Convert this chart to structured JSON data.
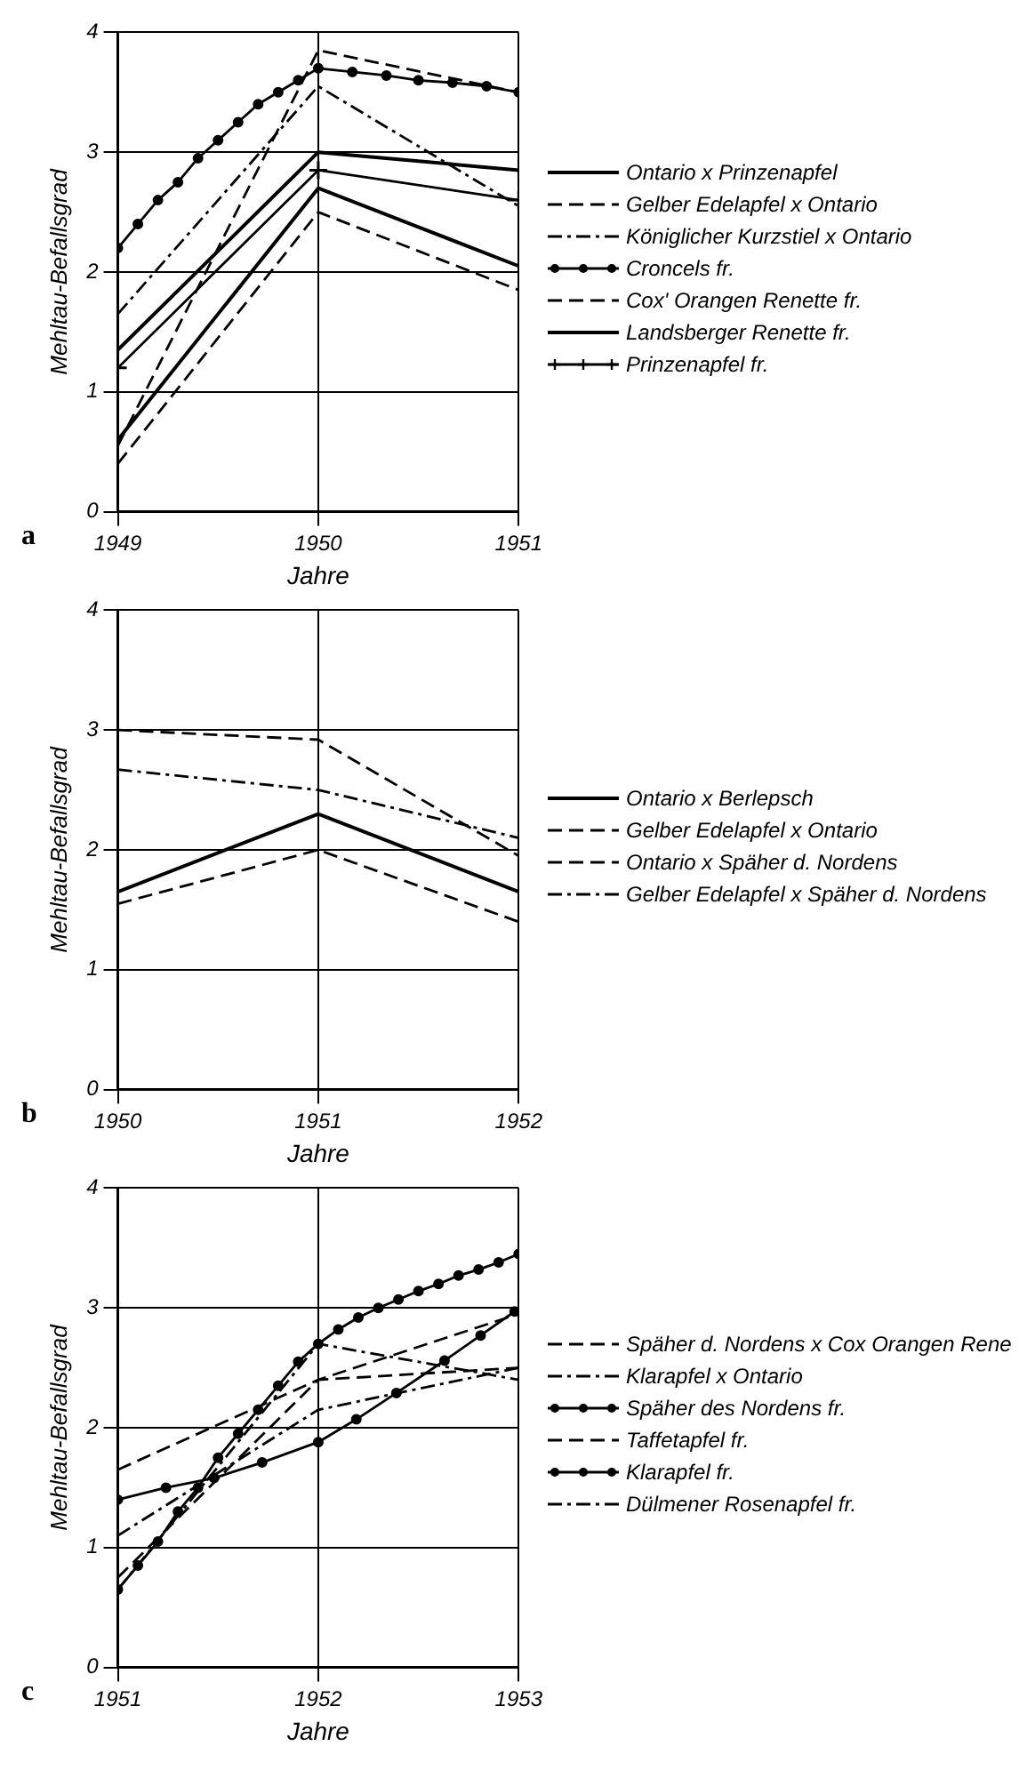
{
  "chart_data": [
    {
      "type": "line",
      "annotations": [
        "a"
      ],
      "xlabel": "Jahre",
      "ylabel": "Mehltau-Befallsgrad",
      "x": [
        1949,
        1950,
        1951
      ],
      "xlim": [
        1949,
        1951
      ],
      "xticks": [
        1949,
        1950,
        1951
      ],
      "ylim": [
        0,
        4
      ],
      "yticks": [
        0,
        1,
        2,
        3,
        4
      ],
      "grid": true,
      "legend": "right",
      "series": [
        {
          "name": "Ontario x Prinzenapfel",
          "color": "#000000",
          "line_style": "solid",
          "values": [
            0.6,
            2.7,
            2.05
          ]
        },
        {
          "name": "Gelber Edelapfel x Ontario",
          "color": "#000000",
          "line_style": "dashed",
          "values": [
            0.4,
            2.5,
            1.85
          ]
        },
        {
          "name": "Königlicher Kurzstiel x Ontario",
          "color": "#000000",
          "line_style": "dotted",
          "values": [
            1.65,
            3.55,
            2.55
          ]
        },
        {
          "name": "Croncels fr.",
          "color": "#000000",
          "line_style": "solid",
          "marker": "circle",
          "x": [
            1949,
            1949.1,
            1949.2,
            1949.3,
            1949.4,
            1949.5,
            1949.6,
            1949.7,
            1949.8,
            1949.9,
            1950,
            1950.17,
            1950.34,
            1950.5,
            1950.67,
            1950.84,
            1951
          ],
          "values": [
            2.2,
            2.4,
            2.6,
            2.75,
            2.95,
            3.1,
            3.25,
            3.4,
            3.5,
            3.6,
            3.7,
            3.67,
            3.64,
            3.6,
            3.58,
            3.55,
            3.5
          ]
        },
        {
          "name": "Cox' Orangen Renette fr.",
          "color": "#000000",
          "line_style": "dashed",
          "values": [
            0.55,
            3.85,
            3.5
          ]
        },
        {
          "name": "Landsberger Renette fr.",
          "color": "#000000",
          "line_style": "solid",
          "values": [
            1.35,
            3.0,
            2.85
          ]
        },
        {
          "name": "Prinzenapfel fr.",
          "color": "#000000",
          "line_style": "solid",
          "marker": "cross",
          "values": [
            1.2,
            2.85,
            2.6
          ]
        }
      ]
    },
    {
      "type": "line",
      "annotations": [
        "b"
      ],
      "xlabel": "Jahre",
      "ylabel": "Mehltau-Befallsgrad",
      "x": [
        1950,
        1951,
        1952
      ],
      "xlim": [
        1950,
        1952
      ],
      "xticks": [
        1950,
        1951,
        1952
      ],
      "ylim": [
        0,
        4
      ],
      "yticks": [
        0,
        1,
        2,
        3,
        4
      ],
      "grid": true,
      "legend": "right",
      "series": [
        {
          "name": "Ontario x Berlepsch",
          "color": "#000000",
          "line_style": "solid",
          "values": [
            1.65,
            2.3,
            1.65
          ]
        },
        {
          "name": "Gelber Edelapfel x Ontario",
          "color": "#000000",
          "line_style": "dashed",
          "values": [
            1.55,
            2.0,
            1.4
          ]
        },
        {
          "name": "Ontario x Späher d. Nordens",
          "color": "#000000",
          "line_style": "dashed",
          "values": [
            3.0,
            2.92,
            1.95
          ]
        },
        {
          "name": "Gelber Edelapfel x Späher d. Nordens",
          "color": "#000000",
          "line_style": "dotted",
          "values": [
            2.67,
            2.5,
            2.1
          ]
        }
      ]
    },
    {
      "type": "line",
      "annotations": [
        "c"
      ],
      "xlabel": "Jahre",
      "ylabel": "Mehltau-Befallsgrad",
      "x": [
        1951,
        1952,
        1953
      ],
      "xlim": [
        1951,
        1953
      ],
      "xticks": [
        1951,
        1952,
        1953
      ],
      "ylim": [
        0,
        4
      ],
      "yticks": [
        0,
        1,
        2,
        3,
        4
      ],
      "grid": true,
      "legend": "right",
      "series": [
        {
          "name": "Späher d. Nordens x Cox Orangen Rene",
          "color": "#000000",
          "line_style": "dashed",
          "values": [
            1.65,
            2.4,
            2.95
          ]
        },
        {
          "name": "Klarapfel x Ontario",
          "color": "#000000",
          "line_style": "dotted",
          "values": [
            1.1,
            2.15,
            2.5
          ]
        },
        {
          "name": "Späher des Nordens fr.",
          "color": "#000000",
          "line_style": "solid",
          "marker": "circle",
          "x": [
            1951,
            1951.1,
            1951.2,
            1951.3,
            1951.4,
            1951.5,
            1951.6,
            1951.7,
            1951.8,
            1951.9,
            1952,
            1952.1,
            1952.2,
            1952.3,
            1952.4,
            1952.5,
            1952.6,
            1952.7,
            1952.8,
            1952.9,
            1953
          ],
          "values": [
            0.65,
            0.85,
            1.05,
            1.3,
            1.5,
            1.75,
            1.95,
            2.15,
            2.35,
            2.55,
            2.7,
            2.82,
            2.92,
            3.0,
            3.07,
            3.14,
            3.2,
            3.27,
            3.32,
            3.38,
            3.45
          ]
        },
        {
          "name": "Taffetapfel fr.",
          "color": "#000000",
          "line_style": "dashed",
          "values": [
            0.75,
            2.4,
            2.5
          ]
        },
        {
          "name": "Klarapfel fr.",
          "color": "#000000",
          "line_style": "solid",
          "marker": "circle",
          "x": [
            1951,
            1951.24,
            1951.48,
            1951.72,
            1952,
            1952.19,
            1952.39,
            1952.63,
            1952.81,
            1952.98
          ],
          "values": [
            1.4,
            1.5,
            1.58,
            1.71,
            1.88,
            2.07,
            2.29,
            2.56,
            2.77,
            2.97
          ]
        },
        {
          "name": "Dülmener Rosenapfel fr.",
          "color": "#000000",
          "line_style": "dotted",
          "values": [
            0.65,
            2.7,
            2.4
          ]
        }
      ]
    }
  ]
}
